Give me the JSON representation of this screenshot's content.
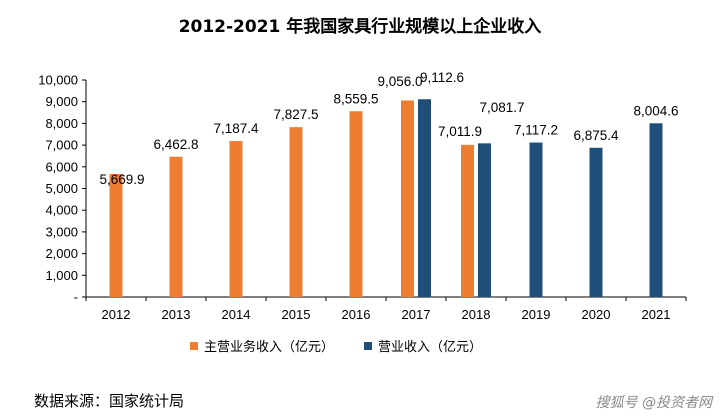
{
  "chart_data": {
    "type": "bar",
    "title": "2012-2021 年我国家具行业规模以上企业收入",
    "categories": [
      "2012",
      "2013",
      "2014",
      "2015",
      "2016",
      "2017",
      "2018",
      "2019",
      "2020",
      "2021"
    ],
    "series": [
      {
        "name": "主营业务收入（亿元）",
        "color": "#ED7D31",
        "values": [
          5669.9,
          6462.8,
          7187.4,
          7827.5,
          8559.5,
          9056.0,
          7011.9,
          null,
          null,
          null
        ],
        "labels": [
          "5,669.9",
          "6,462.8",
          "7,187.4",
          "7,827.5",
          "8,559.5",
          "9,056.0",
          "7,011.9",
          null,
          null,
          null
        ]
      },
      {
        "name": "营业收入（亿元）",
        "color": "#1F4E79",
        "values": [
          null,
          null,
          null,
          null,
          null,
          9112.6,
          7081.7,
          7117.2,
          6875.4,
          8004.6
        ],
        "labels": [
          null,
          null,
          null,
          null,
          null,
          "9,112.6",
          "7,081.7",
          "7,117.2",
          "6,875.4",
          "8,004.6"
        ]
      }
    ],
    "ylim": [
      0,
      10000
    ],
    "yticks": [
      0,
      1000,
      2000,
      3000,
      4000,
      5000,
      6000,
      7000,
      8000,
      9000,
      10000
    ],
    "ytick_labels": [
      "-",
      "1,000",
      "2,000",
      "3,000",
      "4,000",
      "5,000",
      "6,000",
      "7,000",
      "8,000",
      "9,000",
      "10,000"
    ],
    "legend_position": "bottom",
    "grid": false
  },
  "source": "数据来源：国家统计局",
  "watermark": "搜狐号 @投资者网"
}
